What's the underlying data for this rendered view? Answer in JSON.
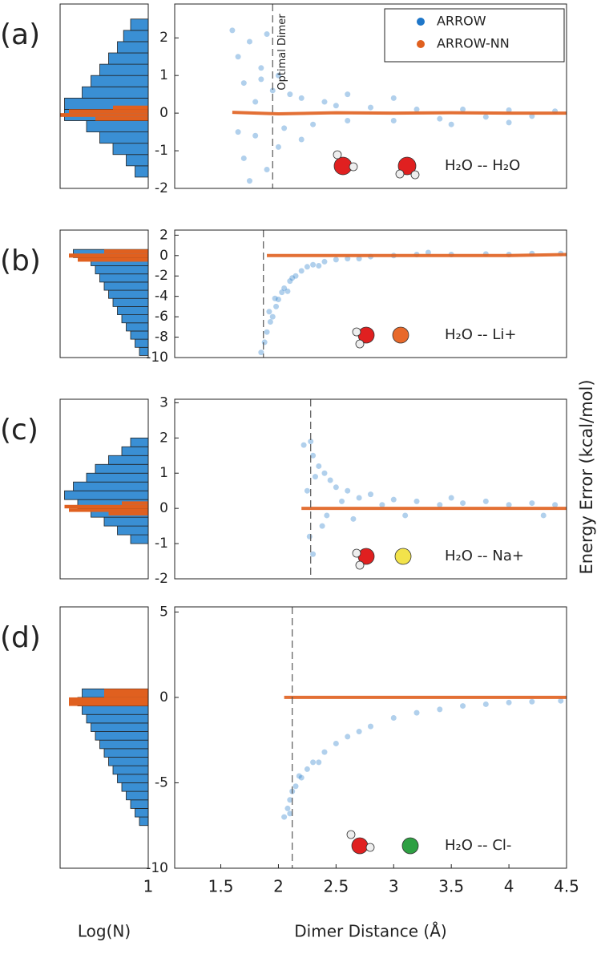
{
  "chart_data": [
    {
      "type": "scatter",
      "label": "(a)",
      "ylabel": "Energy Error (kcal/mol)",
      "annotation": "Optimal Dimer",
      "molecule": "H₂O -- H₂O",
      "xlim": [
        1.1,
        4.5
      ],
      "ylim": [
        -2,
        2.9
      ],
      "yticks": [
        -2,
        -1,
        0,
        1,
        2
      ],
      "vline": 1.95,
      "series": [
        {
          "name": "ARROW",
          "color": "#1f77c9",
          "x": [
            1.6,
            1.65,
            1.7,
            1.7,
            1.75,
            1.8,
            1.8,
            1.85,
            1.9,
            1.95,
            2.0,
            2.05,
            2.1,
            2.2,
            2.3,
            2.4,
            2.5,
            2.6,
            2.8,
            3.0,
            3.2,
            3.4,
            3.6,
            3.8,
            4.0,
            4.2,
            4.4,
            1.75,
            1.9,
            2.0,
            2.2,
            2.6,
            3.0,
            3.5,
            4.0,
            1.65,
            1.85
          ],
          "values": [
            2.2,
            1.5,
            0.8,
            -1.2,
            1.9,
            0.3,
            -0.6,
            1.2,
            -1.5,
            0.6,
            1.0,
            -0.4,
            0.5,
            0.4,
            -0.3,
            0.3,
            0.2,
            -0.2,
            0.15,
            -0.2,
            0.1,
            -0.15,
            0.1,
            -0.1,
            0.08,
            -0.08,
            0.05,
            -1.8,
            2.1,
            -0.9,
            -0.7,
            0.5,
            0.4,
            -0.3,
            -0.25,
            -0.5,
            0.9
          ]
        },
        {
          "name": "ARROW-NN",
          "color": "#e0601f",
          "x": [
            1.6,
            2,
            2.5,
            3,
            3.5,
            4,
            4.5
          ],
          "values": [
            0.02,
            -0.02,
            0.01,
            0,
            0.01,
            0,
            0
          ]
        }
      ],
      "histogram": {
        "xlim": [
          0,
          1
        ],
        "series": [
          {
            "color": "#3a8fd4",
            "bins": [
              -1.7,
              -1.4,
              -1.1,
              -0.8,
              -0.5,
              -0.2,
              0.1,
              0.4,
              0.7,
              1.0,
              1.3,
              1.6,
              1.9,
              2.2,
              2.5
            ],
            "values": [
              0.85,
              0.75,
              0.6,
              0.45,
              0.3,
              0.05,
              0.05,
              0.25,
              0.35,
              0.45,
              0.55,
              0.65,
              0.72,
              0.8
            ]
          },
          {
            "color": "#e0601f",
            "bins": [
              -0.2,
              -0.1,
              0,
              0.1,
              0.2
            ],
            "values": [
              0.4,
              0.0,
              0.1,
              0.6
            ]
          }
        ]
      }
    },
    {
      "type": "scatter",
      "label": "(b)",
      "molecule": "H₂O -- Li+",
      "xlim": [
        1.1,
        4.5
      ],
      "ylim": [
        -10,
        2.5
      ],
      "yticks": [
        -10,
        -8,
        -6,
        -4,
        -2,
        0,
        2
      ],
      "vline": 1.87,
      "series": [
        {
          "color": "#1f77c9",
          "x": [
            1.85,
            1.88,
            1.9,
            1.93,
            1.95,
            1.98,
            2.0,
            2.03,
            2.05,
            2.1,
            2.15,
            2.2,
            2.25,
            2.3,
            2.4,
            2.5,
            2.6,
            2.8,
            3.0,
            3.2,
            3.5,
            3.8,
            4.0,
            4.2,
            4.45,
            1.92,
            1.97,
            2.08,
            2.12,
            2.35,
            2.7,
            3.3
          ],
          "values": [
            -9.5,
            -8.5,
            -7.5,
            -6.5,
            -6,
            -5,
            -4.3,
            -3.6,
            -3.2,
            -2.5,
            -2,
            -1.5,
            -1.1,
            -0.9,
            -0.6,
            -0.4,
            -0.3,
            -0.1,
            0,
            0.1,
            0.1,
            0.15,
            0.1,
            0.2,
            0.2,
            -5.5,
            -4.2,
            -3.5,
            -2.2,
            -1.0,
            -0.3,
            0.3
          ]
        },
        {
          "color": "#e0601f",
          "x": [
            1.9,
            2.5,
            3,
            3.5,
            4,
            4.5
          ],
          "values": [
            0,
            0,
            0,
            0,
            0,
            0.1
          ]
        }
      ],
      "histogram": {
        "xlim": [
          0,
          1
        ],
        "series": [
          {
            "color": "#3a8fd4",
            "bins": [
              -9.8,
              -9,
              -8.2,
              -7.4,
              -6.6,
              -5.8,
              -5,
              -4.2,
              -3.4,
              -2.6,
              -1.8,
              -1,
              -0.2,
              0.6
            ],
            "values": [
              0.9,
              0.85,
              0.8,
              0.75,
              0.7,
              0.65,
              0.6,
              0.55,
              0.5,
              0.45,
              0.4,
              0.35,
              0.15
            ]
          },
          {
            "color": "#e0601f",
            "bins": [
              -0.6,
              -0.2,
              0.2,
              0.6
            ],
            "values": [
              0.2,
              0.1,
              0.5
            ]
          }
        ]
      }
    },
    {
      "type": "scatter",
      "label": "(c)",
      "molecule": "H₂O -- Na+",
      "xlim": [
        1.1,
        4.5
      ],
      "ylim": [
        -2,
        3.1
      ],
      "yticks": [
        -2,
        -1,
        0,
        1,
        2,
        3
      ],
      "vline": 2.28,
      "series": [
        {
          "color": "#1f77c9",
          "x": [
            2.22,
            2.25,
            2.27,
            2.3,
            2.3,
            2.32,
            2.35,
            2.38,
            2.4,
            2.45,
            2.5,
            2.55,
            2.6,
            2.7,
            2.8,
            2.9,
            3.0,
            3.2,
            3.4,
            3.6,
            3.8,
            4.0,
            4.2,
            4.4,
            2.28,
            2.42,
            2.65,
            3.1,
            3.5,
            4.3
          ],
          "values": [
            1.8,
            0.5,
            -0.8,
            1.5,
            -1.3,
            0.9,
            1.2,
            -0.5,
            1.0,
            0.8,
            0.6,
            0.2,
            0.5,
            0.3,
            0.4,
            0.1,
            0.25,
            0.2,
            0.1,
            0.15,
            0.2,
            0.1,
            0.15,
            0.1,
            1.9,
            -0.2,
            -0.3,
            -0.2,
            0.3,
            -0.2
          ]
        },
        {
          "color": "#e0601f",
          "x": [
            2.2,
            2.5,
            3,
            3.5,
            4,
            4.5
          ],
          "values": [
            0,
            0,
            0,
            0,
            0,
            0
          ]
        }
      ],
      "histogram": {
        "xlim": [
          0,
          1
        ],
        "series": [
          {
            "color": "#3a8fd4",
            "bins": [
              -1,
              -0.75,
              -0.5,
              -0.25,
              0,
              0.25,
              0.5,
              0.75,
              1,
              1.25,
              1.5,
              1.75,
              2
            ],
            "values": [
              0.8,
              0.65,
              0.5,
              0.35,
              0.2,
              0.05,
              0.15,
              0.3,
              0.4,
              0.55,
              0.7,
              0.8
            ]
          },
          {
            "color": "#e0601f",
            "bins": [
              -0.2,
              -0.1,
              0,
              0.1,
              0.2
            ],
            "values": [
              0.55,
              0.1,
              0.05,
              0.7
            ]
          }
        ]
      }
    },
    {
      "type": "scatter",
      "label": "(d)",
      "molecule": "H₂O -- Cl-",
      "xlabel": "Dimer Distance  (Å)",
      "xlim": [
        1.1,
        4.5
      ],
      "xticks": [
        1.5,
        2,
        2.5,
        3,
        3.5,
        4,
        4.5
      ],
      "ylim": [
        -10,
        5.3
      ],
      "yticks": [
        -10,
        -5,
        0,
        5
      ],
      "vline": 2.12,
      "series": [
        {
          "color": "#1f77c9",
          "x": [
            2.05,
            2.08,
            2.1,
            2.12,
            2.15,
            2.2,
            2.25,
            2.3,
            2.4,
            2.5,
            2.6,
            2.7,
            2.8,
            3.0,
            3.2,
            3.4,
            3.6,
            3.8,
            4.0,
            4.2,
            4.45,
            2.1,
            2.18,
            2.35
          ],
          "values": [
            -7,
            -6.5,
            -6,
            -5.5,
            -5.2,
            -4.7,
            -4.2,
            -3.8,
            -3.2,
            -2.7,
            -2.3,
            -2,
            -1.7,
            -1.2,
            -0.9,
            -0.7,
            -0.5,
            -0.4,
            -0.3,
            -0.25,
            -0.2,
            -6.8,
            -4.6,
            -3.8
          ]
        },
        {
          "color": "#e0601f",
          "x": [
            2.05,
            2.5,
            3,
            3.5,
            4,
            4.5
          ],
          "values": [
            0,
            0,
            0,
            0,
            0,
            0
          ]
        }
      ],
      "histogram": {
        "xlim": [
          0,
          1
        ],
        "xticks": [
          1
        ],
        "xlabel": "Log(N)",
        "series": [
          {
            "color": "#3a8fd4",
            "bins": [
              -7.5,
              -7,
              -6.5,
              -6,
              -5.5,
              -5,
              -4.5,
              -4,
              -3.5,
              -3,
              -2.5,
              -2,
              -1.5,
              -1,
              -0.5,
              0,
              0.5
            ],
            "values": [
              0.9,
              0.85,
              0.8,
              0.75,
              0.7,
              0.65,
              0.6,
              0.55,
              0.5,
              0.45,
              0.4,
              0.35,
              0.3,
              0.25,
              0.2,
              0.25
            ]
          },
          {
            "color": "#e0601f",
            "bins": [
              -0.5,
              0,
              0.5
            ],
            "values": [
              0.1,
              0.5
            ]
          }
        ]
      }
    }
  ]
}
